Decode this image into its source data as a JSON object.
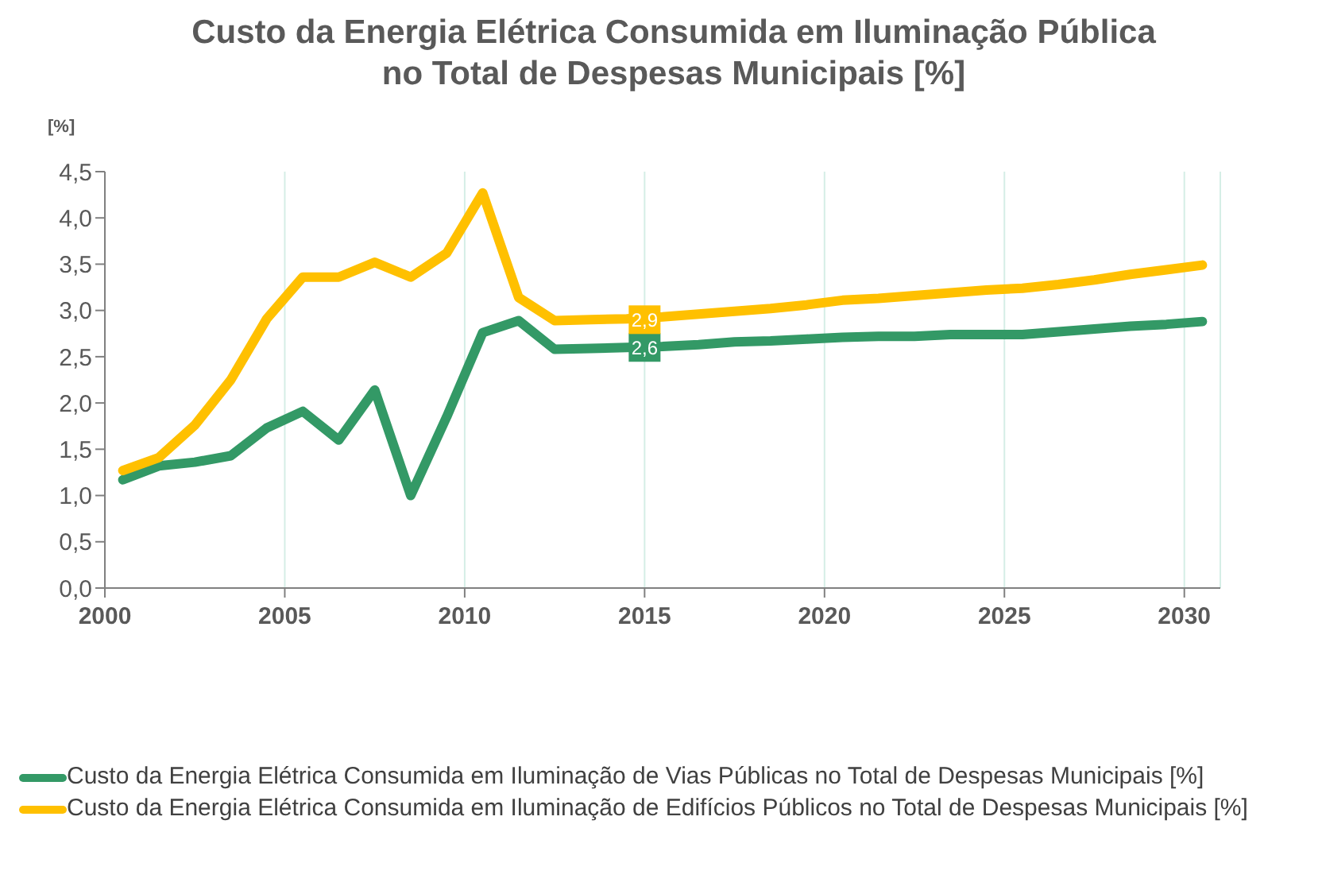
{
  "chart_data": {
    "type": "line",
    "title": "Custo da Energia Elétrica Consumida em Iluminação Pública no Total de Despesas Municipais [%]",
    "ylabel": "[%]",
    "x": [
      2000.5,
      2001.5,
      2002.5,
      2003.5,
      2004.5,
      2005.5,
      2006.5,
      2007.5,
      2008.5,
      2009.5,
      2010.5,
      2011.5,
      2012.5,
      2013.5,
      2014.5,
      2015.5,
      2016.5,
      2017.5,
      2018.5,
      2019.5,
      2020.5,
      2021.5,
      2022.5,
      2023.5,
      2024.5,
      2025.5,
      2026.5,
      2027.5,
      2028.5,
      2029.5,
      2030.5
    ],
    "series": [
      {
        "name": "Custo da Energia Elétrica Consumida em Iluminação de Vias Públicas no Total de Despesas Municipais [%]",
        "color": "#339966",
        "values": [
          1.17,
          1.32,
          1.36,
          1.43,
          1.73,
          1.91,
          1.6,
          2.14,
          1.0,
          1.85,
          2.76,
          2.89,
          2.58,
          2.59,
          2.6,
          2.61,
          2.63,
          2.66,
          2.67,
          2.69,
          2.71,
          2.72,
          2.72,
          2.74,
          2.74,
          2.74,
          2.77,
          2.8,
          2.83,
          2.85,
          2.88
        ]
      },
      {
        "name": "Custo da Energia Elétrica Consumida em Iluminação de Edifícios Públicos no Total de Despesas Municipais [%]",
        "color": "#ffc000",
        "values": [
          1.27,
          1.41,
          1.76,
          2.25,
          2.91,
          3.36,
          3.36,
          3.52,
          3.36,
          3.62,
          4.27,
          3.14,
          2.89,
          2.9,
          2.91,
          2.93,
          2.96,
          2.99,
          3.02,
          3.06,
          3.11,
          3.13,
          3.16,
          3.19,
          3.22,
          3.24,
          3.28,
          3.33,
          3.39,
          3.44,
          3.49
        ]
      }
    ],
    "annotations": [
      {
        "text": "2,6",
        "x": 2015,
        "y": 2.6
      },
      {
        "text": "2,9",
        "x": 2015,
        "y": 2.9
      }
    ],
    "xlim": [
      2000,
      2031
    ],
    "xticks": [
      2000,
      2005,
      2010,
      2015,
      2020,
      2025,
      2030
    ],
    "ylim": [
      0,
      4.5
    ],
    "yticks": [
      {
        "value": 0,
        "label": "0,0"
      },
      {
        "value": 0.5,
        "label": "0,5"
      },
      {
        "value": 1,
        "label": "1,0"
      },
      {
        "value": 1.5,
        "label": "1,5"
      },
      {
        "value": 2,
        "label": "2,0"
      },
      {
        "value": 2.5,
        "label": "2,5"
      },
      {
        "value": 3,
        "label": "3,0"
      },
      {
        "value": 3.5,
        "label": "3,5"
      },
      {
        "value": 4,
        "label": "4,0"
      },
      {
        "value": 4.5,
        "label": "4,5"
      }
    ],
    "grid": "x",
    "legend": "bottom",
    "marker": "none",
    "line_style": "solid"
  }
}
